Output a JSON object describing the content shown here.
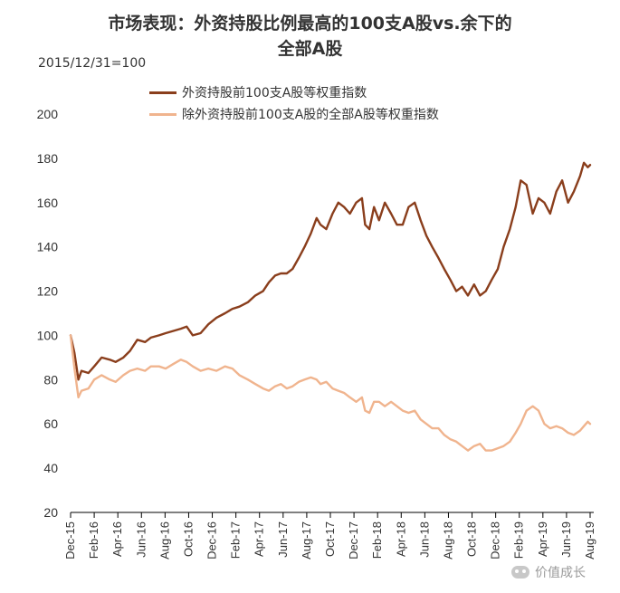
{
  "header": {
    "title_line1": "市场表现：外资持股比例最高的100支A股vs.余下的",
    "title_line2": "全部A股",
    "base_note": "2015/12/31=100"
  },
  "watermark": {
    "text": "价值成长"
  },
  "colors": {
    "series1": "#8a3e1c",
    "series2": "#f0b48e",
    "axis": "#000000"
  },
  "chart_data": {
    "type": "line",
    "title": "市场表现：外资持股比例最高的100支A股vs.余下的全部A股",
    "subtitle": "2015/12/31=100",
    "xlabel": "",
    "ylabel": "",
    "ylim": [
      20,
      200
    ],
    "yticks": [
      20,
      40,
      60,
      80,
      100,
      120,
      140,
      160,
      180,
      200
    ],
    "xtick_labels": [
      "Dec-15",
      "Feb-16",
      "Apr-16",
      "Jun-16",
      "Aug-16",
      "Oct-16",
      "Dec-16",
      "Feb-17",
      "Apr-17",
      "Jun-17",
      "Aug-17",
      "Oct-17",
      "Dec-17",
      "Feb-18",
      "Apr-18",
      "Jun-18",
      "Aug-18",
      "Oct-18",
      "Dec-18",
      "Feb-19",
      "Apr-19",
      "Jun-19",
      "Aug-19"
    ],
    "grid": false,
    "legend_position": "top-left",
    "series": [
      {
        "name": "外资持股前100支A股等权重指数",
        "x": [
          "2015-12-31",
          "2016-01-10",
          "2016-01-20",
          "2016-01-28",
          "2016-02-15",
          "2016-03-01",
          "2016-03-20",
          "2016-04-10",
          "2016-04-25",
          "2016-05-15",
          "2016-06-01",
          "2016-06-20",
          "2016-07-10",
          "2016-07-25",
          "2016-08-15",
          "2016-09-01",
          "2016-09-20",
          "2016-10-10",
          "2016-10-25",
          "2016-11-10",
          "2016-11-30",
          "2016-12-20",
          "2017-01-10",
          "2017-02-01",
          "2017-02-20",
          "2017-03-10",
          "2017-04-01",
          "2017-04-20",
          "2017-05-10",
          "2017-05-25",
          "2017-06-10",
          "2017-06-25",
          "2017-07-10",
          "2017-07-25",
          "2017-08-10",
          "2017-08-25",
          "2017-09-10",
          "2017-09-25",
          "2017-10-05",
          "2017-10-20",
          "2017-11-05",
          "2017-11-20",
          "2017-12-05",
          "2017-12-20",
          "2018-01-05",
          "2018-01-20",
          "2018-01-28",
          "2018-02-08",
          "2018-02-20",
          "2018-03-05",
          "2018-03-20",
          "2018-04-05",
          "2018-04-20",
          "2018-05-05",
          "2018-05-20",
          "2018-06-05",
          "2018-06-20",
          "2018-07-05",
          "2018-07-20",
          "2018-08-05",
          "2018-08-20",
          "2018-09-05",
          "2018-09-20",
          "2018-10-05",
          "2018-10-20",
          "2018-11-05",
          "2018-11-20",
          "2018-12-05",
          "2018-12-20",
          "2019-01-05",
          "2019-01-20",
          "2019-02-05",
          "2019-02-20",
          "2019-03-05",
          "2019-03-20",
          "2019-04-05",
          "2019-04-20",
          "2019-05-05",
          "2019-05-20",
          "2019-06-05",
          "2019-06-20",
          "2019-07-05",
          "2019-07-20",
          "2019-08-05",
          "2019-08-15",
          "2019-08-25",
          "2019-08-31"
        ],
        "values": [
          100,
          92,
          80,
          84,
          83,
          86,
          90,
          89,
          88,
          90,
          93,
          98,
          97,
          99,
          100,
          101,
          102,
          103,
          104,
          100,
          101,
          105,
          108,
          110,
          112,
          113,
          115,
          118,
          120,
          124,
          127,
          128,
          128,
          130,
          135,
          140,
          146,
          153,
          150,
          148,
          155,
          160,
          158,
          155,
          160,
          162,
          150,
          148,
          158,
          152,
          160,
          155,
          150,
          150,
          158,
          160,
          152,
          145,
          140,
          135,
          130,
          125,
          120,
          122,
          118,
          123,
          118,
          120,
          125,
          130,
          140,
          148,
          158,
          170,
          168,
          155,
          162,
          160,
          155,
          165,
          170,
          160,
          165,
          172,
          178,
          176,
          177
        ]
      },
      {
        "name": "除外资持股前100支A股的全部A股等权重指数",
        "x": [
          "2015-12-31",
          "2016-01-10",
          "2016-01-20",
          "2016-01-28",
          "2016-02-15",
          "2016-03-01",
          "2016-03-20",
          "2016-04-10",
          "2016-04-25",
          "2016-05-15",
          "2016-06-01",
          "2016-06-20",
          "2016-07-10",
          "2016-07-25",
          "2016-08-15",
          "2016-09-01",
          "2016-09-20",
          "2016-10-10",
          "2016-10-25",
          "2016-11-10",
          "2016-11-30",
          "2016-12-20",
          "2017-01-10",
          "2017-02-01",
          "2017-02-20",
          "2017-03-10",
          "2017-04-01",
          "2017-04-20",
          "2017-05-10",
          "2017-05-25",
          "2017-06-10",
          "2017-06-25",
          "2017-07-10",
          "2017-07-25",
          "2017-08-10",
          "2017-08-25",
          "2017-09-10",
          "2017-09-25",
          "2017-10-05",
          "2017-10-20",
          "2017-11-05",
          "2017-11-20",
          "2017-12-05",
          "2017-12-20",
          "2018-01-05",
          "2018-01-20",
          "2018-01-28",
          "2018-02-08",
          "2018-02-20",
          "2018-03-05",
          "2018-03-20",
          "2018-04-05",
          "2018-04-20",
          "2018-05-05",
          "2018-05-20",
          "2018-06-05",
          "2018-06-20",
          "2018-07-05",
          "2018-07-20",
          "2018-08-05",
          "2018-08-20",
          "2018-09-05",
          "2018-09-20",
          "2018-10-05",
          "2018-10-20",
          "2018-11-05",
          "2018-11-20",
          "2018-12-05",
          "2018-12-20",
          "2019-01-05",
          "2019-01-20",
          "2019-02-05",
          "2019-02-20",
          "2019-03-05",
          "2019-03-20",
          "2019-04-05",
          "2019-04-20",
          "2019-05-05",
          "2019-05-20",
          "2019-06-05",
          "2019-06-20",
          "2019-07-05",
          "2019-07-20",
          "2019-08-05",
          "2019-08-15",
          "2019-08-25",
          "2019-08-31"
        ],
        "values": [
          100,
          85,
          72,
          75,
          76,
          80,
          82,
          80,
          79,
          82,
          84,
          85,
          84,
          86,
          86,
          85,
          87,
          89,
          88,
          86,
          84,
          85,
          84,
          86,
          85,
          82,
          80,
          78,
          76,
          75,
          77,
          78,
          76,
          77,
          79,
          80,
          81,
          80,
          78,
          79,
          76,
          75,
          74,
          72,
          70,
          72,
          66,
          65,
          70,
          70,
          68,
          70,
          68,
          66,
          65,
          66,
          62,
          60,
          58,
          58,
          55,
          53,
          52,
          50,
          48,
          50,
          51,
          48,
          48,
          49,
          50,
          52,
          56,
          60,
          66,
          68,
          66,
          60,
          58,
          59,
          58,
          56,
          55,
          57,
          59,
          61,
          60
        ]
      }
    ]
  }
}
